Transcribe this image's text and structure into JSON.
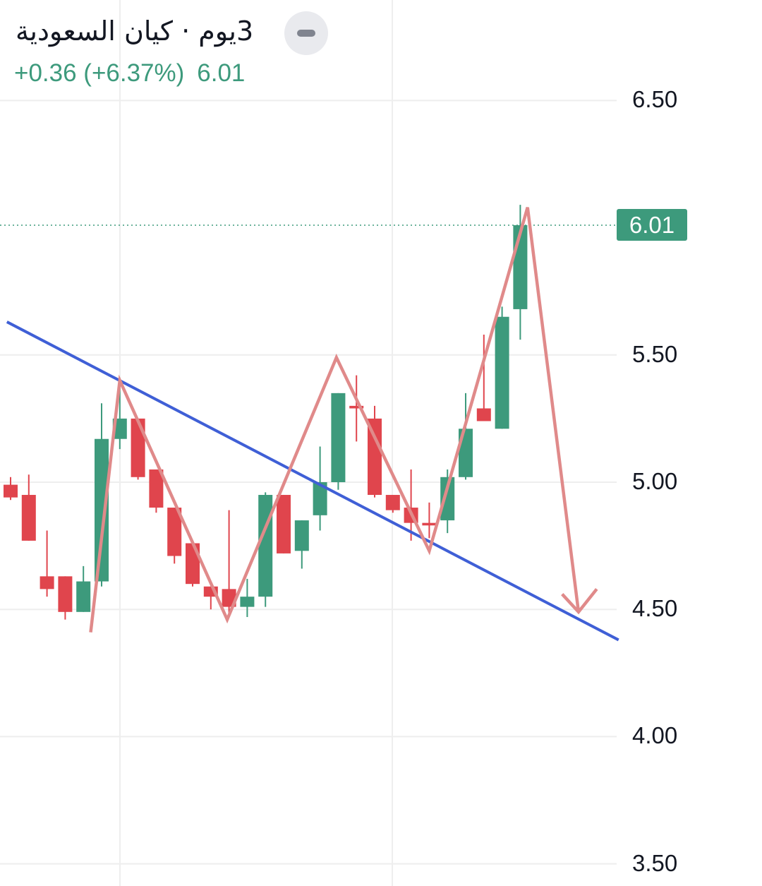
{
  "header": {
    "title": "3يوم · كيان السعودية",
    "change": "+0.36 (+6.37%)",
    "last_price": "6.01",
    "collapse_icon": "minus-icon"
  },
  "price_tag": "6.01",
  "colors": {
    "up": "#3d9a7c",
    "down": "#e0454d",
    "trendline": "#3f5fd6",
    "pattern": "#e08a8a",
    "grid": "#eeeeee"
  },
  "chart_data": {
    "type": "candlestick",
    "title": "",
    "ylim": [
      3.5,
      6.5
    ],
    "y_ticks": [
      "3.50",
      "4.00",
      "4.50",
      "5.00",
      "5.50",
      "6.50"
    ],
    "last_price_line": 6.01,
    "grid": true,
    "candles": [
      {
        "o": 4.99,
        "h": 5.02,
        "l": 4.93,
        "c": 4.94
      },
      {
        "o": 4.95,
        "h": 5.03,
        "l": 4.77,
        "c": 4.77
      },
      {
        "o": 4.63,
        "h": 4.81,
        "l": 4.55,
        "c": 4.58
      },
      {
        "o": 4.63,
        "h": 4.63,
        "l": 4.46,
        "c": 4.49
      },
      {
        "o": 4.49,
        "h": 4.67,
        "l": 4.49,
        "c": 4.61
      },
      {
        "o": 4.61,
        "h": 5.31,
        "l": 4.59,
        "c": 5.17
      },
      {
        "o": 5.17,
        "h": 5.41,
        "l": 5.13,
        "c": 5.25
      },
      {
        "o": 5.25,
        "h": 5.25,
        "l": 5.01,
        "c": 5.02
      },
      {
        "o": 5.05,
        "h": 5.05,
        "l": 4.88,
        "c": 4.9
      },
      {
        "o": 4.9,
        "h": 4.9,
        "l": 4.68,
        "c": 4.71
      },
      {
        "o": 4.76,
        "h": 4.76,
        "l": 4.59,
        "c": 4.6
      },
      {
        "o": 4.59,
        "h": 4.59,
        "l": 4.5,
        "c": 4.55
      },
      {
        "o": 4.58,
        "h": 4.89,
        "l": 4.48,
        "c": 4.51
      },
      {
        "o": 4.51,
        "h": 4.62,
        "l": 4.47,
        "c": 4.55
      },
      {
        "o": 4.55,
        "h": 4.96,
        "l": 4.51,
        "c": 4.95
      },
      {
        "o": 4.95,
        "h": 4.95,
        "l": 4.72,
        "c": 4.72
      },
      {
        "o": 4.73,
        "h": 4.85,
        "l": 4.66,
        "c": 4.85
      },
      {
        "o": 4.87,
        "h": 5.14,
        "l": 4.81,
        "c": 5.0
      },
      {
        "o": 5.0,
        "h": 5.35,
        "l": 4.97,
        "c": 5.35
      },
      {
        "o": 5.3,
        "h": 5.42,
        "l": 5.16,
        "c": 5.29
      },
      {
        "o": 5.25,
        "h": 5.3,
        "l": 4.94,
        "c": 4.95
      },
      {
        "o": 4.95,
        "h": 4.95,
        "l": 4.88,
        "c": 4.89
      },
      {
        "o": 4.9,
        "h": 5.05,
        "l": 4.77,
        "c": 4.84
      },
      {
        "o": 4.84,
        "h": 4.92,
        "l": 4.78,
        "c": 4.83
      },
      {
        "o": 4.85,
        "h": 5.05,
        "l": 4.8,
        "c": 5.02
      },
      {
        "o": 5.02,
        "h": 5.35,
        "l": 5.01,
        "c": 5.21
      },
      {
        "o": 5.29,
        "h": 5.58,
        "l": 5.24,
        "c": 5.24
      },
      {
        "o": 5.21,
        "h": 5.69,
        "l": 5.21,
        "c": 5.65
      },
      {
        "o": 5.68,
        "h": 6.09,
        "l": 5.56,
        "c": 6.01
      }
    ],
    "trendline": [
      {
        "i": -0.2,
        "y": 5.63
      },
      {
        "i": 33.4,
        "y": 4.38
      }
    ],
    "pattern_path": [
      {
        "i": 4.4,
        "y": 4.41
      },
      {
        "i": 6.0,
        "y": 5.4
      },
      {
        "i": 11.9,
        "y": 4.46
      },
      {
        "i": 17.9,
        "y": 5.49
      },
      {
        "i": 23.0,
        "y": 4.73
      },
      {
        "i": 28.4,
        "y": 6.08
      },
      {
        "i": 31.2,
        "y": 4.49
      }
    ],
    "pattern_arrowhead": [
      {
        "i": 30.3,
        "y": 4.56
      },
      {
        "i": 31.2,
        "y": 4.49
      },
      {
        "i": 32.2,
        "y": 4.58
      }
    ]
  }
}
